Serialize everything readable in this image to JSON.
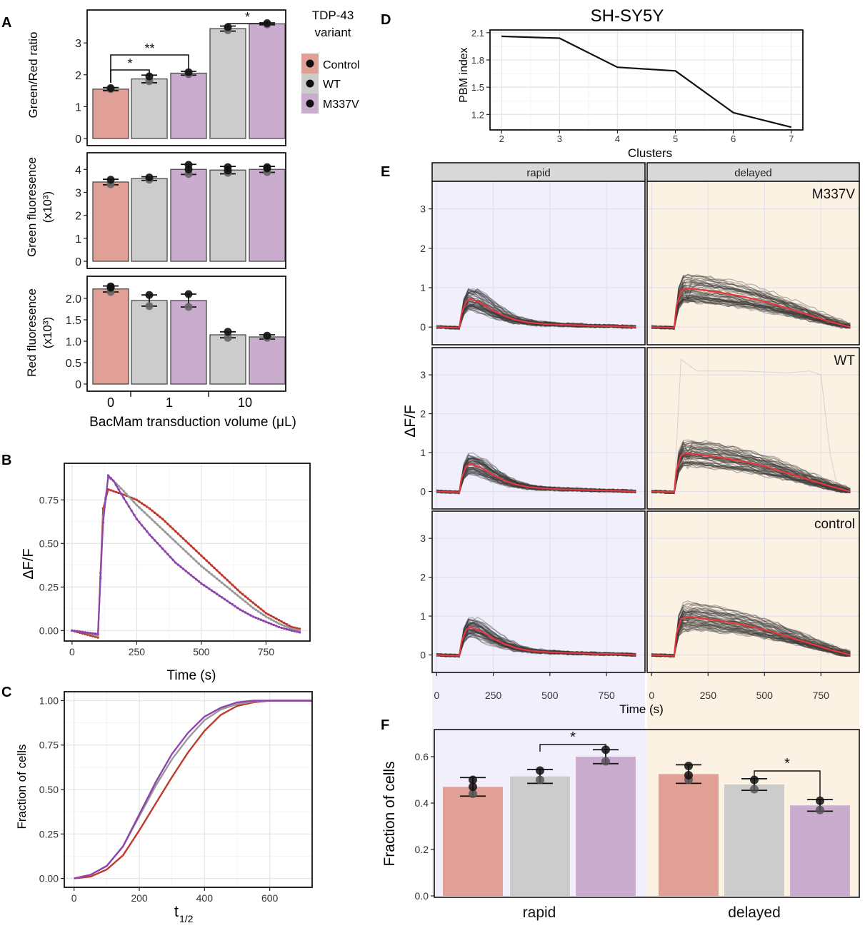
{
  "chart_data": [
    {
      "panel": "A",
      "type": "bar",
      "legend_title": [
        "TDP-43",
        "variant"
      ],
      "legend": [
        {
          "name": "Control",
          "color": "#e0a096"
        },
        {
          "name": "WT",
          "color": "#cccccc"
        },
        {
          "name": "M337V",
          "color": "#c9acce"
        }
      ],
      "xlabel": "BacMam transduction volume (μL)",
      "group_labels": [
        "0",
        "1",
        "10"
      ],
      "subplots": [
        {
          "ylabel": [
            "Green/Red ratio"
          ],
          "ylim": [
            0,
            3.9
          ],
          "yticks": [
            "0",
            "1",
            "2",
            "3"
          ],
          "bars": [
            {
              "group": "0",
              "variant": "Control",
              "value": 1.55,
              "err": 0.05,
              "points": [
                1.55,
                1.58
              ]
            },
            {
              "group": "1",
              "variant": "WT",
              "value": 1.87,
              "err": 0.12,
              "points": [
                1.8,
                1.95
              ]
            },
            {
              "group": "1",
              "variant": "M337V",
              "value": 2.05,
              "err": 0.06,
              "points": [
                2.02,
                2.08
              ]
            },
            {
              "group": "10",
              "variant": "WT",
              "value": 3.45,
              "err": 0.08,
              "points": [
                3.4,
                3.5
              ]
            },
            {
              "group": "10",
              "variant": "M337V",
              "value": 3.6,
              "err": 0.03,
              "points": [
                3.58,
                3.62
              ]
            }
          ],
          "significance": [
            {
              "from": 0,
              "to": 1,
              "label": "*"
            },
            {
              "from": 0,
              "to": 2,
              "label": "**"
            },
            {
              "from": 3,
              "to": 4,
              "label": "*"
            }
          ]
        },
        {
          "ylabel": [
            "Green fluoresence",
            "(x10³)"
          ],
          "ylim": [
            0,
            4.6
          ],
          "yticks": [
            "0",
            "1",
            "2",
            "3",
            "4"
          ],
          "bars": [
            {
              "group": "0",
              "variant": "Control",
              "value": 3.45,
              "err": 0.12,
              "points": [
                3.35,
                3.55
              ]
            },
            {
              "group": "1",
              "variant": "WT",
              "value": 3.6,
              "err": 0.08,
              "points": [
                3.55,
                3.65
              ]
            },
            {
              "group": "1",
              "variant": "M337V",
              "value": 4.0,
              "err": 0.22,
              "points": [
                3.8,
                4.0,
                4.2
              ]
            },
            {
              "group": "10",
              "variant": "WT",
              "value": 3.97,
              "err": 0.16,
              "points": [
                3.85,
                3.95,
                4.1
              ]
            },
            {
              "group": "10",
              "variant": "M337V",
              "value": 4.0,
              "err": 0.13,
              "points": [
                3.88,
                4.05,
                4.1
              ]
            }
          ],
          "significance": []
        },
        {
          "ylabel": [
            "Red fluoresence",
            "(x10³)"
          ],
          "ylim": [
            0,
            2.45
          ],
          "yticks": [
            "0",
            "0.5",
            "1.0",
            "1.5",
            "2.0"
          ],
          "bars": [
            {
              "group": "0",
              "variant": "Control",
              "value": 2.22,
              "err": 0.07,
              "points": [
                2.15,
                2.25,
                2.28
              ]
            },
            {
              "group": "1",
              "variant": "WT",
              "value": 1.95,
              "err": 0.13,
              "points": [
                1.82,
                2.08
              ]
            },
            {
              "group": "1",
              "variant": "M337V",
              "value": 1.95,
              "err": 0.15,
              "points": [
                1.8,
                2.1
              ]
            },
            {
              "group": "10",
              "variant": "WT",
              "value": 1.15,
              "err": 0.07,
              "points": [
                1.08,
                1.22
              ]
            },
            {
              "group": "10",
              "variant": "M337V",
              "value": 1.1,
              "err": 0.05,
              "points": [
                1.08,
                1.13
              ]
            }
          ],
          "significance": []
        }
      ]
    },
    {
      "panel": "B",
      "type": "line",
      "xlabel": "Time (s)",
      "ylabel": "ΔF/F",
      "xlim": [
        -30,
        920
      ],
      "ylim": [
        -0.06,
        0.96
      ],
      "xticks": [
        0,
        250,
        500,
        750
      ],
      "xtick_labels": [
        "0",
        "250",
        "500",
        "750"
      ],
      "yticks": [
        0,
        0.25,
        0.5,
        0.75
      ],
      "ytick_labels": [
        "0.00",
        "0.25",
        "0.50",
        "0.75"
      ],
      "series": [
        {
          "name": "Control",
          "color": "#c0392b",
          "x": [
            0,
            50,
            100,
            120,
            140,
            160,
            200,
            250,
            300,
            350,
            400,
            450,
            500,
            550,
            600,
            650,
            700,
            750,
            800,
            850,
            880
          ],
          "y": [
            0,
            -0.02,
            -0.04,
            0.7,
            0.81,
            0.8,
            0.78,
            0.75,
            0.7,
            0.64,
            0.57,
            0.5,
            0.43,
            0.36,
            0.29,
            0.22,
            0.16,
            0.1,
            0.06,
            0.02,
            0.01
          ]
        },
        {
          "name": "WT",
          "color": "#999999",
          "x": [
            0,
            50,
            100,
            120,
            140,
            160,
            200,
            250,
            300,
            350,
            400,
            450,
            500,
            550,
            600,
            650,
            700,
            750,
            800,
            850,
            880
          ],
          "y": [
            0,
            -0.01,
            -0.03,
            0.65,
            0.88,
            0.86,
            0.8,
            0.72,
            0.65,
            0.58,
            0.51,
            0.44,
            0.37,
            0.31,
            0.25,
            0.19,
            0.13,
            0.08,
            0.04,
            0.01,
            0.0
          ]
        },
        {
          "name": "M337V",
          "color": "#8e44ad",
          "x": [
            0,
            50,
            100,
            120,
            140,
            160,
            200,
            250,
            300,
            350,
            400,
            450,
            500,
            550,
            600,
            650,
            700,
            750,
            800,
            850,
            880
          ],
          "y": [
            0,
            -0.01,
            -0.02,
            0.62,
            0.89,
            0.86,
            0.76,
            0.64,
            0.55,
            0.47,
            0.39,
            0.33,
            0.27,
            0.22,
            0.17,
            0.12,
            0.08,
            0.05,
            0.02,
            0.0,
            -0.01
          ]
        }
      ]
    },
    {
      "panel": "C",
      "type": "line",
      "xlabel_main": "t",
      "xlabel_sub": "1/2",
      "ylabel": "Fraction of cells",
      "xlim": [
        -30,
        730
      ],
      "ylim": [
        -0.05,
        1.05
      ],
      "xticks": [
        0,
        200,
        400,
        600
      ],
      "xtick_labels": [
        "0",
        "200",
        "400",
        "600"
      ],
      "yticks": [
        0,
        0.25,
        0.5,
        0.75,
        1.0
      ],
      "ytick_labels": [
        "0.00",
        "0.25",
        "0.50",
        "0.75",
        "1.00"
      ],
      "series": [
        {
          "name": "Control",
          "color": "#c0392b",
          "x": [
            0,
            50,
            100,
            150,
            200,
            250,
            300,
            350,
            400,
            450,
            500,
            550,
            600,
            650,
            700,
            730
          ],
          "y": [
            0,
            0.01,
            0.05,
            0.13,
            0.27,
            0.42,
            0.57,
            0.71,
            0.83,
            0.92,
            0.97,
            0.99,
            1.0,
            1.0,
            1.0,
            1.0
          ]
        },
        {
          "name": "WT",
          "color": "#999999",
          "x": [
            0,
            50,
            100,
            150,
            200,
            250,
            300,
            350,
            400,
            450,
            500,
            550,
            600,
            650,
            700,
            730
          ],
          "y": [
            0,
            0.02,
            0.07,
            0.18,
            0.35,
            0.52,
            0.67,
            0.79,
            0.89,
            0.95,
            0.98,
            0.995,
            1.0,
            1.0,
            1.0,
            1.0
          ]
        },
        {
          "name": "M337V",
          "color": "#8e44ad",
          "x": [
            0,
            50,
            100,
            150,
            200,
            250,
            300,
            350,
            400,
            450,
            500,
            550,
            600,
            650,
            700,
            730
          ],
          "y": [
            0,
            0.02,
            0.07,
            0.18,
            0.36,
            0.54,
            0.7,
            0.82,
            0.91,
            0.96,
            0.99,
            1.0,
            1.0,
            1.0,
            1.0,
            1.0
          ]
        }
      ]
    },
    {
      "panel": "D",
      "type": "line",
      "title": "SH-SY5Y",
      "xlabel": "Clusters",
      "ylabel": "PBM index",
      "xlim": [
        1.8,
        7.2
      ],
      "ylim": [
        1.03,
        2.13
      ],
      "xticks": [
        2,
        3,
        4,
        5,
        6,
        7
      ],
      "xtick_labels": [
        "2",
        "3",
        "4",
        "5",
        "6",
        "7"
      ],
      "yticks": [
        1.2,
        1.5,
        1.8,
        2.1
      ],
      "ytick_labels": [
        "1.2",
        "1.5",
        "1.8",
        "2.1"
      ],
      "series": [
        {
          "name": "PBM index",
          "color": "#111111",
          "x": [
            2,
            3,
            4,
            5,
            6,
            7
          ],
          "y": [
            2.06,
            2.04,
            1.72,
            1.68,
            1.22,
            1.06
          ]
        }
      ]
    },
    {
      "panel": "E",
      "type": "line",
      "facet_columns": [
        "rapid",
        "delayed"
      ],
      "facet_rows": [
        "M337V",
        "WT",
        "control"
      ],
      "xlabel": "Time (s)",
      "ylabel": "ΔF/F",
      "xlim": [
        -20,
        920
      ],
      "ylim": [
        -0.45,
        3.7
      ],
      "xticks": [
        0,
        250,
        500,
        750
      ],
      "xtick_labels": [
        "0",
        "250",
        "500",
        "750"
      ],
      "yticks": [
        0,
        1,
        2,
        3
      ],
      "ytick_labels": [
        "0",
        "1",
        "2",
        "3"
      ],
      "series": [
        {
          "name": "rapid mean",
          "color": "#e8383d",
          "x": [
            0,
            100,
            110,
            130,
            150,
            200,
            250,
            300,
            350,
            400,
            450,
            500,
            600,
            700,
            800,
            880
          ],
          "y": [
            0,
            -0.02,
            0.35,
            0.65,
            0.72,
            0.6,
            0.42,
            0.28,
            0.18,
            0.12,
            0.09,
            0.07,
            0.05,
            0.03,
            0.02,
            0.0
          ]
        },
        {
          "name": "delayed mean",
          "color": "#e8383d",
          "x": [
            0,
            100,
            110,
            130,
            150,
            200,
            300,
            400,
            500,
            600,
            700,
            800,
            880
          ],
          "y": [
            0,
            -0.02,
            0.55,
            0.92,
            0.98,
            0.96,
            0.88,
            0.78,
            0.65,
            0.48,
            0.3,
            0.12,
            0.0
          ]
        }
      ]
    },
    {
      "panel": "F",
      "type": "bar",
      "ylabel": "Fraction of cells",
      "categories": [
        "rapid",
        "delayed"
      ],
      "ylim": [
        0,
        0.68
      ],
      "yticks": [
        0,
        0.2,
        0.4,
        0.6
      ],
      "ytick_labels": [
        "0.0",
        "0.2",
        "0.4",
        "0.6"
      ],
      "series": [
        {
          "name": "control",
          "color": "#e0a096",
          "values": [
            0.47,
            0.525
          ],
          "err": [
            0.04,
            0.04
          ],
          "points": [
            [
              0.44,
              0.47,
              0.5
            ],
            [
              0.5,
              0.52,
              0.56
            ]
          ]
        },
        {
          "name": "WT",
          "color": "#cccccc",
          "values": [
            0.515,
            0.48
          ],
          "err": [
            0.03,
            0.025
          ],
          "points": [
            [
              0.5,
              0.54
            ],
            [
              0.46,
              0.5
            ]
          ]
        },
        {
          "name": "M337V",
          "color": "#c9acce",
          "values": [
            0.6,
            0.39
          ],
          "err": [
            0.03,
            0.025
          ],
          "points": [
            [
              0.58,
              0.63
            ],
            [
              0.37,
              0.41
            ]
          ]
        }
      ],
      "significance": [
        {
          "category": "rapid",
          "from": "WT",
          "to": "M337V",
          "label": "*"
        },
        {
          "category": "delayed",
          "from": "WT",
          "to": "M337V",
          "label": "*"
        }
      ]
    }
  ],
  "panel_labels": [
    "A",
    "B",
    "C",
    "D",
    "E",
    "F"
  ]
}
